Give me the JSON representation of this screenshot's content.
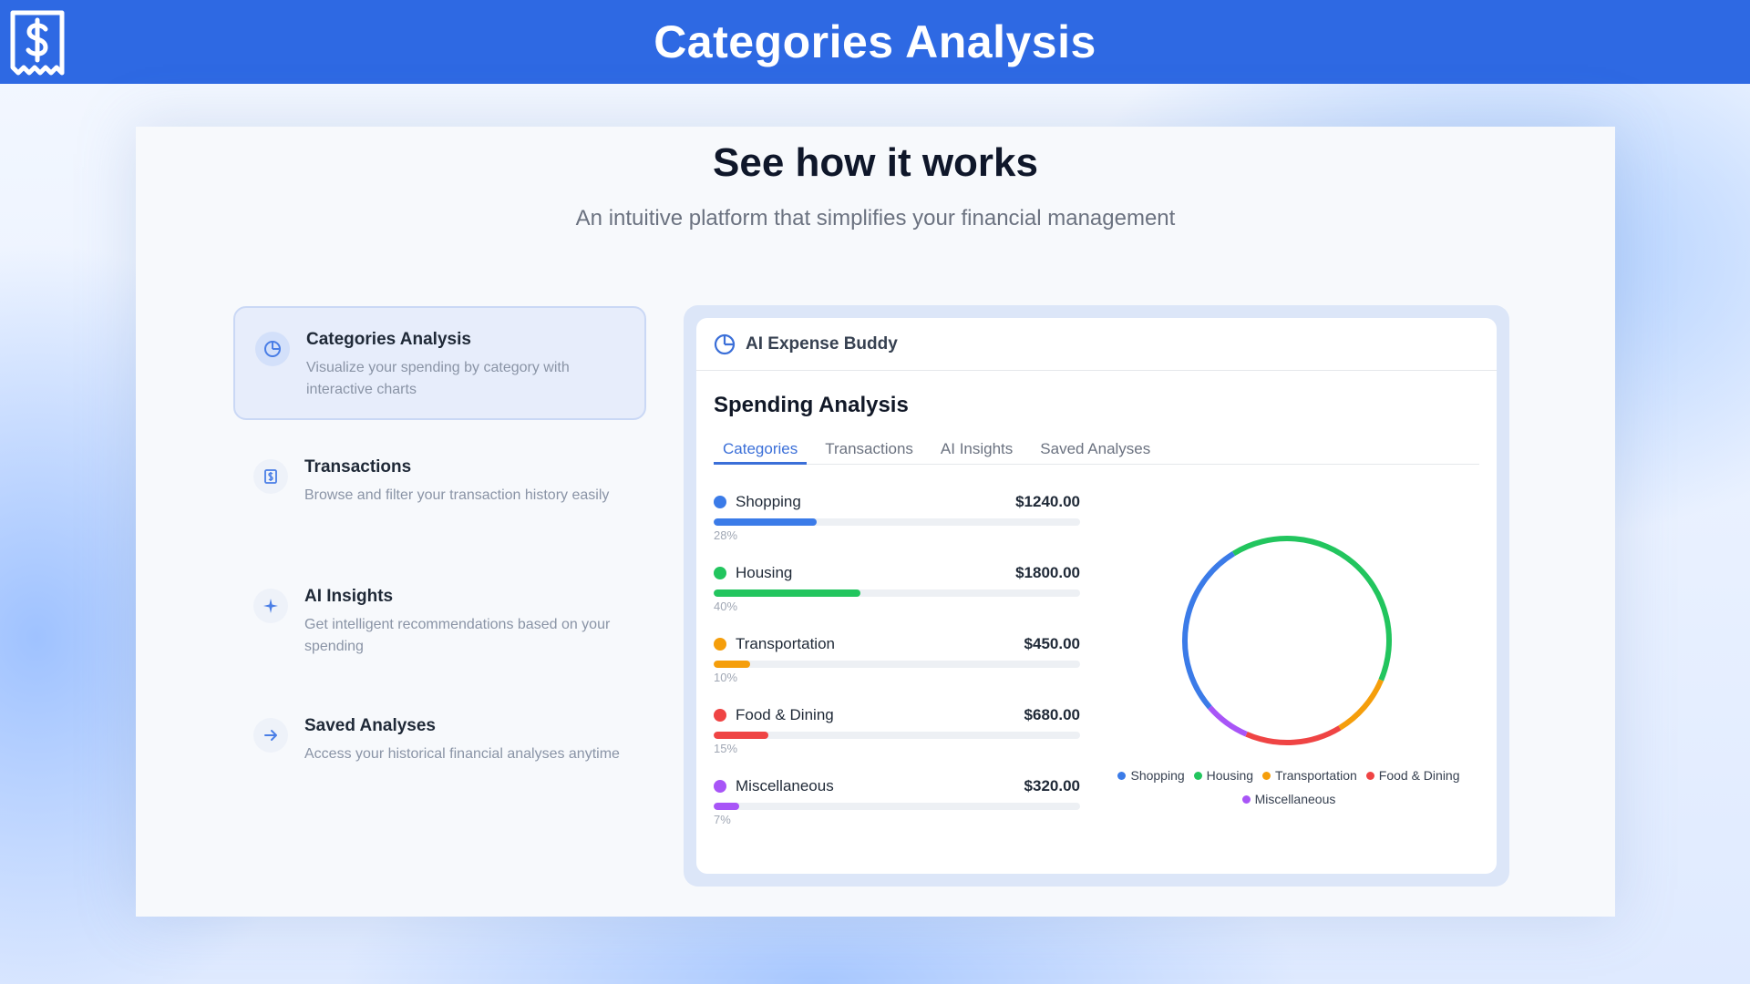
{
  "page": {
    "title": "Categories Analysis",
    "hero_title": "See how it works",
    "hero_subtitle": "An intuitive platform that simplifies your financial management"
  },
  "features": [
    {
      "name": "Categories Analysis",
      "desc": "Visualize your spending by category with interactive charts",
      "icon": "pie-chart-icon",
      "active": true
    },
    {
      "name": "Transactions",
      "desc": "Browse and filter your transaction history easily",
      "icon": "receipt-icon",
      "active": false
    },
    {
      "name": "AI Insights",
      "desc": "Get intelligent recommendations based on your spending",
      "icon": "sparkle-icon",
      "active": false
    },
    {
      "name": "Saved Analyses",
      "desc": "Access your historical financial analyses anytime",
      "icon": "arrow-right-icon",
      "active": false
    }
  ],
  "demo": {
    "app_name": "AI Expense Buddy",
    "section_title": "Spending Analysis",
    "tabs": [
      {
        "label": "Categories",
        "active": true
      },
      {
        "label": "Transactions",
        "active": false
      },
      {
        "label": "AI Insights",
        "active": false
      },
      {
        "label": "Saved Analyses",
        "active": false
      }
    ],
    "categories": [
      {
        "name": "Shopping",
        "amount": "$1240.00",
        "pct": "28%",
        "pct_value": 28,
        "color": "#3b7be8"
      },
      {
        "name": "Housing",
        "amount": "$1800.00",
        "pct": "40%",
        "pct_value": 40,
        "color": "#22c55e"
      },
      {
        "name": "Transportation",
        "amount": "$450.00",
        "pct": "10%",
        "pct_value": 10,
        "color": "#f59e0b"
      },
      {
        "name": "Food & Dining",
        "amount": "$680.00",
        "pct": "15%",
        "pct_value": 15,
        "color": "#ef4444"
      },
      {
        "name": "Miscellaneous",
        "amount": "$320.00",
        "pct": "7%",
        "pct_value": 7,
        "color": "#a855f7"
      }
    ]
  },
  "chart_data": {
    "type": "pie",
    "categories": [
      "Shopping",
      "Housing",
      "Transportation",
      "Food & Dining",
      "Miscellaneous"
    ],
    "values": [
      1240,
      1800,
      450,
      680,
      320
    ],
    "colors": [
      "#3b7be8",
      "#22c55e",
      "#f59e0b",
      "#ef4444",
      "#a855f7"
    ],
    "donut": true,
    "legend": "bottom"
  }
}
